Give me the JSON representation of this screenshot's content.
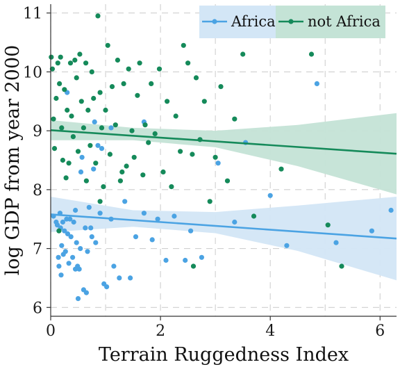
{
  "chart_data": {
    "type": "scatter",
    "xlabel": "Terrain Ruggedness Index",
    "ylabel": "log GDP from year 2000",
    "xlim": [
      0,
      6.3
    ],
    "ylim": [
      5.85,
      11.15
    ],
    "xticks": [
      0,
      2,
      4,
      6
    ],
    "yticks": [
      6,
      7,
      8,
      9,
      10,
      11
    ],
    "grid": true,
    "legend_position": "top-right",
    "series": [
      {
        "name": "Africa",
        "color": "#4ba3e3",
        "band_color": "#d3e6f6",
        "fit": {
          "x": [
            0,
            6.3
          ],
          "y": [
            7.58,
            7.17
          ]
        },
        "band": {
          "x": [
            0,
            1.5,
            3.0,
            4.5,
            6.3
          ],
          "upper": [
            7.88,
            7.65,
            7.62,
            7.73,
            7.88
          ],
          "lower": [
            7.28,
            7.37,
            7.26,
            6.96,
            6.46
          ]
        },
        "points": [
          [
            0.05,
            7.55
          ],
          [
            0.1,
            7.45
          ],
          [
            0.12,
            7.4
          ],
          [
            0.14,
            6.85
          ],
          [
            0.15,
            6.7
          ],
          [
            0.17,
            7.6
          ],
          [
            0.18,
            7.35
          ],
          [
            0.19,
            6.55
          ],
          [
            0.2,
            7.05
          ],
          [
            0.22,
            7.45
          ],
          [
            0.23,
            6.9
          ],
          [
            0.25,
            7.3
          ],
          [
            0.27,
            6.95
          ],
          [
            0.29,
            7.5
          ],
          [
            0.31,
            7.25
          ],
          [
            0.33,
            6.75
          ],
          [
            0.35,
            7.5
          ],
          [
            0.37,
            7.2
          ],
          [
            0.4,
            6.85
          ],
          [
            0.42,
            7.45
          ],
          [
            0.45,
            6.65
          ],
          [
            0.47,
            7.1
          ],
          [
            0.49,
            6.7
          ],
          [
            0.5,
            6.15
          ],
          [
            0.52,
            6.65
          ],
          [
            0.54,
            7.0
          ],
          [
            0.57,
            8.55
          ],
          [
            0.6,
            6.3
          ],
          [
            0.63,
            7.35
          ],
          [
            0.65,
            6.25
          ],
          [
            0.67,
            6.95
          ],
          [
            0.7,
            7.7
          ],
          [
            0.73,
            7.35
          ],
          [
            0.75,
            7.2
          ],
          [
            0.78,
            8.35
          ],
          [
            0.82,
            7.1
          ],
          [
            0.86,
            8.75
          ],
          [
            0.9,
            7.6
          ],
          [
            0.93,
            8.7
          ],
          [
            0.97,
            6.4
          ],
          [
            1.02,
            6.35
          ],
          [
            1.1,
            7.5
          ],
          [
            1.15,
            6.7
          ],
          [
            1.25,
            6.5
          ],
          [
            1.35,
            7.8
          ],
          [
            1.45,
            6.5
          ],
          [
            1.55,
            7.2
          ],
          [
            1.7,
            7.6
          ],
          [
            1.85,
            7.15
          ],
          [
            1.95,
            7.5
          ],
          [
            2.1,
            6.8
          ],
          [
            2.25,
            7.55
          ],
          [
            2.45,
            6.8
          ],
          [
            2.55,
            7.3
          ],
          [
            2.75,
            6.85
          ],
          [
            3.05,
            8.45
          ],
          [
            3.35,
            7.45
          ],
          [
            3.55,
            8.8
          ],
          [
            4.0,
            7.9
          ],
          [
            4.3,
            7.05
          ],
          [
            4.85,
            9.8
          ],
          [
            5.2,
            7.1
          ],
          [
            5.85,
            7.3
          ],
          [
            6.2,
            7.65
          ],
          [
            0.3,
            9.65
          ],
          [
            0.8,
            9.15
          ],
          [
            1.1,
            9.05
          ],
          [
            1.7,
            9.15
          ],
          [
            0.55,
            8.3
          ],
          [
            0.45,
            7.65
          ]
        ]
      },
      {
        "name": "not Africa",
        "color": "#158a5a",
        "band_color": "#c4e3d6",
        "fit": {
          "x": [
            0,
            6.3
          ],
          "y": [
            9.01,
            8.61
          ]
        },
        "band": {
          "x": [
            0,
            1.5,
            3.0,
            4.5,
            6.3
          ],
          "upper": [
            9.18,
            9.05,
            9.0,
            9.1,
            9.3
          ],
          "lower": [
            8.84,
            8.84,
            8.72,
            8.4,
            7.92
          ]
        },
        "points": [
          [
            0.01,
            10.25
          ],
          [
            0.03,
            10.05
          ],
          [
            0.05,
            9.2
          ],
          [
            0.07,
            8.7
          ],
          [
            0.1,
            9.55
          ],
          [
            0.13,
            10.15
          ],
          [
            0.16,
            9.8
          ],
          [
            0.18,
            10.25
          ],
          [
            0.2,
            9.05
          ],
          [
            0.22,
            8.5
          ],
          [
            0.25,
            9.7
          ],
          [
            0.28,
            8.2
          ],
          [
            0.3,
            9.35
          ],
          [
            0.33,
            8.45
          ],
          [
            0.36,
            10.15
          ],
          [
            0.38,
            9.25
          ],
          [
            0.41,
            8.9
          ],
          [
            0.44,
            10.2
          ],
          [
            0.47,
            9.9
          ],
          [
            0.5,
            8.65
          ],
          [
            0.53,
            10.3
          ],
          [
            0.56,
            9.5
          ],
          [
            0.6,
            9.05
          ],
          [
            0.64,
            10.15
          ],
          [
            0.68,
            9.35
          ],
          [
            0.72,
            8.75
          ],
          [
            0.75,
            10.0
          ],
          [
            0.78,
            9.55
          ],
          [
            0.82,
            8.45
          ],
          [
            0.86,
            10.95
          ],
          [
            0.9,
            9.65
          ],
          [
            0.93,
            9.05
          ],
          [
            0.96,
            8.05
          ],
          [
            1.0,
            9.35
          ],
          [
            1.04,
            10.45
          ],
          [
            1.08,
            8.6
          ],
          [
            1.12,
            9.75
          ],
          [
            1.18,
            9.1
          ],
          [
            1.22,
            10.2
          ],
          [
            1.27,
            8.15
          ],
          [
            1.33,
            9.8
          ],
          [
            1.38,
            8.4
          ],
          [
            1.42,
            10.05
          ],
          [
            1.48,
            9.0
          ],
          [
            1.52,
            8.55
          ],
          [
            1.58,
            9.6
          ],
          [
            1.62,
            10.15
          ],
          [
            1.68,
            8.25
          ],
          [
            1.72,
            9.1
          ],
          [
            1.78,
            8.8
          ],
          [
            1.83,
            9.8
          ],
          [
            1.9,
            8.95
          ],
          [
            1.98,
            10.05
          ],
          [
            2.05,
            8.3
          ],
          [
            2.12,
            9.5
          ],
          [
            2.2,
            8.05
          ],
          [
            2.28,
            9.25
          ],
          [
            2.36,
            8.65
          ],
          [
            2.42,
            10.45
          ],
          [
            2.5,
            10.15
          ],
          [
            2.58,
            8.6
          ],
          [
            2.65,
            9.9
          ],
          [
            2.72,
            8.85
          ],
          [
            2.8,
            9.5
          ],
          [
            2.9,
            7.8
          ],
          [
            3.0,
            8.55
          ],
          [
            3.1,
            9.75
          ],
          [
            3.22,
            8.15
          ],
          [
            3.35,
            9.2
          ],
          [
            3.5,
            10.3
          ],
          [
            3.7,
            7.55
          ],
          [
            4.2,
            8.35
          ],
          [
            4.75,
            10.3
          ],
          [
            5.05,
            7.4
          ],
          [
            5.3,
            6.7
          ],
          [
            0.15,
            7.3
          ],
          [
            0.65,
            8.15
          ],
          [
            0.9,
            7.8
          ],
          [
            1.3,
            8.3
          ],
          [
            2.6,
            6.7
          ]
        ]
      }
    ]
  }
}
